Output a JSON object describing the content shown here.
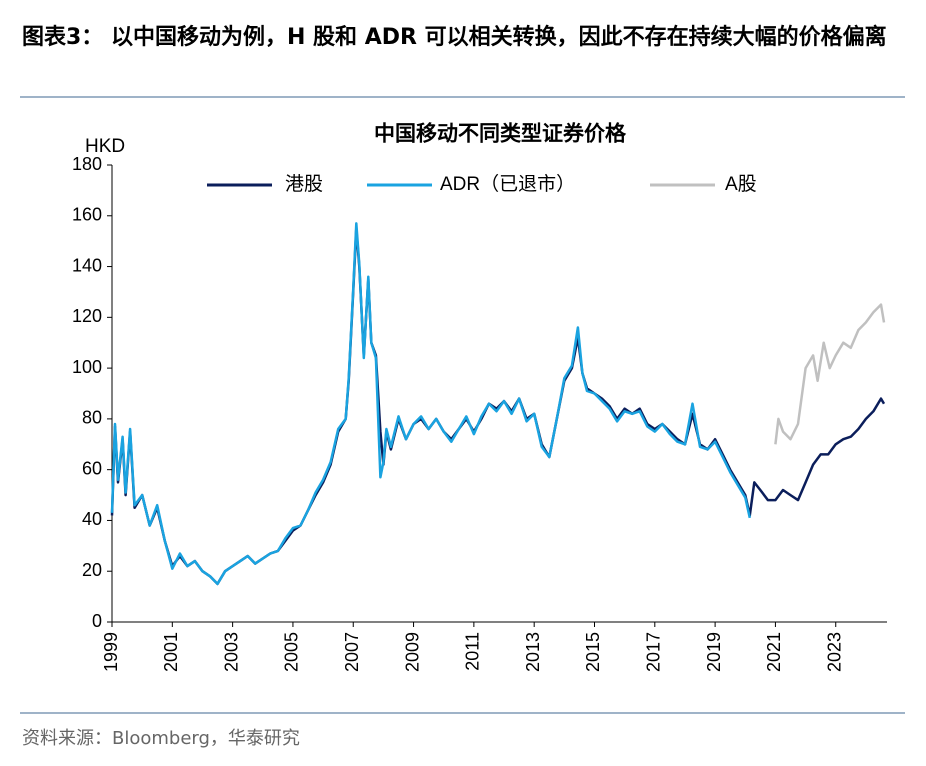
{
  "header": {
    "title": "图表3： 以中国移动为例，H 股和 ADR 可以相关转换，因此不存在持续大幅的价格偏离"
  },
  "source": "资料来源：Bloomberg，华泰研究",
  "chart_data": {
    "type": "line",
    "title": "中国移动不同类型证券价格",
    "y_label": "HKD",
    "ylim": [
      0,
      180
    ],
    "yticks": [
      0,
      20,
      40,
      60,
      80,
      100,
      120,
      140,
      160,
      180
    ],
    "xlim": [
      1999,
      2024.7
    ],
    "xticks": [
      1999,
      2001,
      2003,
      2005,
      2007,
      2009,
      2011,
      2013,
      2015,
      2017,
      2019,
      2021,
      2023
    ],
    "legend": "top",
    "series": [
      {
        "name": "港股",
        "color": "#0b1e5b",
        "x": [
          1999.0,
          1999.1,
          1999.2,
          1999.35,
          1999.45,
          1999.6,
          1999.75,
          2000.0,
          2000.25,
          2000.5,
          2000.75,
          2001.0,
          2001.25,
          2001.5,
          2001.75,
          2002.0,
          2002.25,
          2002.5,
          2002.75,
          2003.0,
          2003.25,
          2003.5,
          2003.75,
          2004.0,
          2004.25,
          2004.5,
          2004.75,
          2005.0,
          2005.25,
          2005.5,
          2005.75,
          2006.0,
          2006.25,
          2006.5,
          2006.75,
          2006.85,
          2007.0,
          2007.1,
          2007.2,
          2007.35,
          2007.5,
          2007.6,
          2007.75,
          2007.9,
          2008.0,
          2008.1,
          2008.25,
          2008.5,
          2008.75,
          2009.0,
          2009.25,
          2009.5,
          2009.75,
          2010.0,
          2010.25,
          2010.5,
          2010.75,
          2011.0,
          2011.25,
          2011.5,
          2011.75,
          2012.0,
          2012.25,
          2012.5,
          2012.75,
          2013.0,
          2013.25,
          2013.5,
          2013.75,
          2014.0,
          2014.25,
          2014.45,
          2014.6,
          2014.75,
          2015.0,
          2015.25,
          2015.5,
          2015.75,
          2016.0,
          2016.25,
          2016.5,
          2016.75,
          2017.0,
          2017.25,
          2017.5,
          2017.75,
          2018.0,
          2018.25,
          2018.5,
          2018.75,
          2019.0,
          2019.25,
          2019.5,
          2019.75,
          2020.0,
          2020.15,
          2020.3,
          2020.5,
          2020.75,
          2021.0,
          2021.25,
          2021.5,
          2021.75,
          2022.0,
          2022.25,
          2022.5,
          2022.75,
          2023.0,
          2023.25,
          2023.5,
          2023.75,
          2024.0,
          2024.25,
          2024.5,
          2024.6
        ],
        "values": [
          42,
          77,
          55,
          72,
          50,
          75,
          45,
          50,
          38,
          45,
          32,
          22,
          26,
          22,
          24,
          20,
          18,
          15,
          20,
          22,
          24,
          26,
          23,
          25,
          27,
          28,
          32,
          36,
          38,
          44,
          50,
          55,
          62,
          75,
          80,
          95,
          130,
          155,
          140,
          105,
          135,
          110,
          105,
          75,
          62,
          75,
          68,
          80,
          72,
          78,
          80,
          76,
          80,
          75,
          72,
          76,
          80,
          75,
          80,
          86,
          84,
          87,
          83,
          88,
          80,
          82,
          70,
          65,
          80,
          95,
          100,
          112,
          98,
          92,
          90,
          88,
          85,
          80,
          84,
          82,
          84,
          78,
          76,
          78,
          75,
          72,
          70,
          82,
          70,
          68,
          72,
          66,
          60,
          55,
          50,
          42,
          55,
          52,
          48,
          48,
          52,
          50,
          48,
          55,
          62,
          66,
          66,
          70,
          72,
          73,
          76,
          80,
          83,
          88,
          86
        ]
      },
      {
        "name": "ADR（已退市）",
        "color": "#1aa3e0",
        "x": [
          1999.0,
          1999.1,
          1999.2,
          1999.35,
          1999.45,
          1999.6,
          1999.75,
          2000.0,
          2000.25,
          2000.5,
          2000.75,
          2001.0,
          2001.25,
          2001.5,
          2001.75,
          2002.0,
          2002.25,
          2002.5,
          2002.75,
          2003.0,
          2003.25,
          2003.5,
          2003.75,
          2004.0,
          2004.25,
          2004.5,
          2004.75,
          2005.0,
          2005.25,
          2005.5,
          2005.75,
          2006.0,
          2006.25,
          2006.5,
          2006.75,
          2006.85,
          2007.0,
          2007.1,
          2007.2,
          2007.35,
          2007.5,
          2007.6,
          2007.75,
          2007.9,
          2008.0,
          2008.1,
          2008.25,
          2008.5,
          2008.75,
          2009.0,
          2009.25,
          2009.5,
          2009.75,
          2010.0,
          2010.25,
          2010.5,
          2010.75,
          2011.0,
          2011.25,
          2011.5,
          2011.75,
          2012.0,
          2012.25,
          2012.5,
          2012.75,
          2013.0,
          2013.25,
          2013.5,
          2013.75,
          2014.0,
          2014.25,
          2014.45,
          2014.6,
          2014.75,
          2015.0,
          2015.25,
          2015.5,
          2015.75,
          2016.0,
          2016.25,
          2016.5,
          2016.75,
          2017.0,
          2017.25,
          2017.5,
          2017.75,
          2018.0,
          2018.25,
          2018.5,
          2018.75,
          2019.0,
          2019.25,
          2019.5,
          2019.75,
          2020.0,
          2020.15
        ],
        "values": [
          43,
          78,
          56,
          73,
          51,
          76,
          46,
          50,
          38,
          46,
          32,
          21,
          27,
          22,
          24,
          20,
          18,
          15,
          20,
          22,
          24,
          26,
          23,
          25,
          27,
          28,
          33,
          37,
          38,
          44,
          51,
          56,
          63,
          76,
          80,
          96,
          131,
          157,
          141,
          104,
          136,
          110,
          104,
          57,
          63,
          76,
          69,
          81,
          72,
          78,
          81,
          76,
          80,
          75,
          71,
          76,
          81,
          74,
          81,
          86,
          83,
          87,
          82,
          88,
          79,
          82,
          69,
          65,
          80,
          96,
          101,
          116,
          98,
          91,
          90,
          87,
          84,
          79,
          83,
          82,
          83,
          77,
          75,
          78,
          74,
          71,
          70,
          86,
          69,
          68,
          71,
          65,
          59,
          54,
          49,
          41
        ]
      },
      {
        "name": "A股",
        "color": "#c0c0c0",
        "x": [
          2021.0,
          2021.1,
          2021.25,
          2021.5,
          2021.75,
          2022.0,
          2022.25,
          2022.4,
          2022.6,
          2022.8,
          2023.0,
          2023.25,
          2023.5,
          2023.75,
          2024.0,
          2024.25,
          2024.5,
          2024.6
        ],
        "values": [
          70,
          80,
          75,
          72,
          78,
          100,
          105,
          95,
          110,
          100,
          105,
          110,
          108,
          115,
          118,
          122,
          125,
          118
        ]
      }
    ]
  }
}
